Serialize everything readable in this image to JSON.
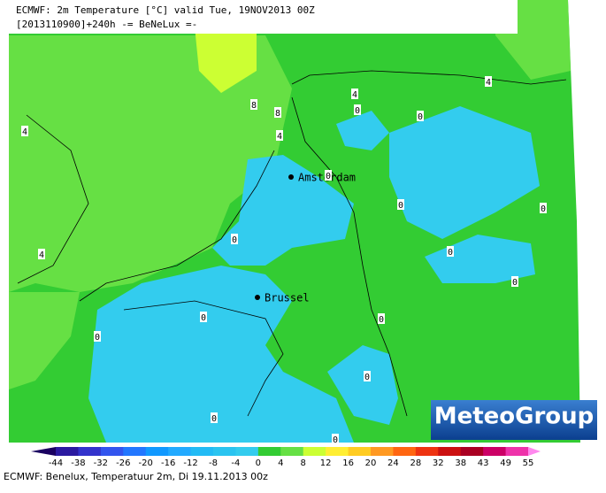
{
  "header": {
    "line1": "ECMWF: 2m Temperature [°C] valid Tue, 19NOV2013 00Z",
    "line2": "[2013110900]+240h -= BeNeLux =-"
  },
  "map": {
    "cities": [
      "Amsterdam",
      "Brussel"
    ],
    "contour_labels": [
      "8",
      "8",
      "4",
      "4",
      "4",
      "4",
      "4",
      "0",
      "0",
      "0",
      "0",
      "0",
      "0",
      "0",
      "0",
      "0",
      "0",
      "0",
      "0",
      "0",
      "0"
    ]
  },
  "colorbar": {
    "labels": [
      "-44",
      "-38",
      "-32",
      "-26",
      "-20",
      "-16",
      "-12",
      "-8",
      "-4",
      "0",
      "4",
      "8",
      "12",
      "16",
      "20",
      "24",
      "28",
      "32",
      "38",
      "43",
      "49",
      "55"
    ],
    "colors": [
      "#1a0060",
      "#2b1aa0",
      "#3333cc",
      "#3355ee",
      "#2277ff",
      "#1199ff",
      "#22aaff",
      "#22bbf5",
      "#2ac4f0",
      "#33ccee",
      "#33cc33",
      "#66e044",
      "#ccff33",
      "#ffee33",
      "#ffcc22",
      "#ff9922",
      "#ff6611",
      "#ee3311",
      "#cc1111",
      "#aa0022",
      "#cc0066",
      "#ee33aa",
      "#ff88ee"
    ]
  },
  "footer": "ECMWF: Benelux, Temperatuur 2m, Di 19.11.2013 00z",
  "logo": "MeteoGroup"
}
